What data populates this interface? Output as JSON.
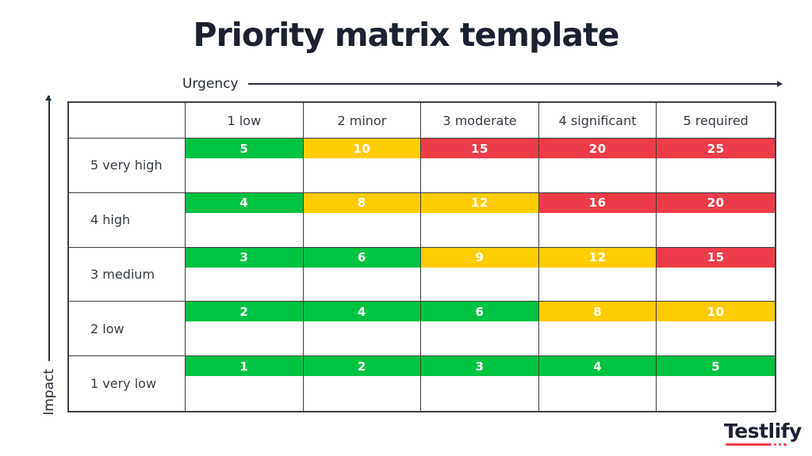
{
  "page": {
    "title": "Priority matrix template"
  },
  "axes": {
    "x_label": "Urgency",
    "y_label": "Impact"
  },
  "colors": {
    "green": "#00c341",
    "yellow": "#ffcd00",
    "red": "#ee3d49",
    "dark": "#1b2130",
    "border": "#3f3f3f",
    "brand_red": "#f23d4c"
  },
  "chart_data": {
    "type": "heatmap",
    "title": "Priority matrix template",
    "xlabel": "Urgency",
    "ylabel": "Impact",
    "legend_position": "none",
    "grid": true,
    "columns": [
      "1 low",
      "2 minor",
      "3 moderate",
      "4 significant",
      "5 required"
    ],
    "rows": [
      {
        "label": "5 very high",
        "cells": [
          {
            "value": "5",
            "color": "green"
          },
          {
            "value": "10",
            "color": "yellow"
          },
          {
            "value": "15",
            "color": "red"
          },
          {
            "value": "20",
            "color": "red"
          },
          {
            "value": "25",
            "color": "red"
          }
        ]
      },
      {
        "label": "4 high",
        "cells": [
          {
            "value": "4",
            "color": "green"
          },
          {
            "value": "8",
            "color": "yellow"
          },
          {
            "value": "12",
            "color": "yellow"
          },
          {
            "value": "16",
            "color": "red"
          },
          {
            "value": "20",
            "color": "red"
          }
        ]
      },
      {
        "label": "3 medium",
        "cells": [
          {
            "value": "3",
            "color": "green"
          },
          {
            "value": "6",
            "color": "green"
          },
          {
            "value": "9",
            "color": "yellow"
          },
          {
            "value": "12",
            "color": "yellow"
          },
          {
            "value": "15",
            "color": "red"
          }
        ]
      },
      {
        "label": "2 low",
        "cells": [
          {
            "value": "2",
            "color": "green"
          },
          {
            "value": "4",
            "color": "green"
          },
          {
            "value": "6",
            "color": "green"
          },
          {
            "value": "8",
            "color": "yellow"
          },
          {
            "value": "10",
            "color": "yellow"
          }
        ]
      },
      {
        "label": "1 very low",
        "cells": [
          {
            "value": "1",
            "color": "green"
          },
          {
            "value": "2",
            "color": "green"
          },
          {
            "value": "3",
            "color": "green"
          },
          {
            "value": "4",
            "color": "green"
          },
          {
            "value": "5",
            "color": "green"
          }
        ]
      }
    ]
  },
  "footer": {
    "brand": "Testlify"
  }
}
